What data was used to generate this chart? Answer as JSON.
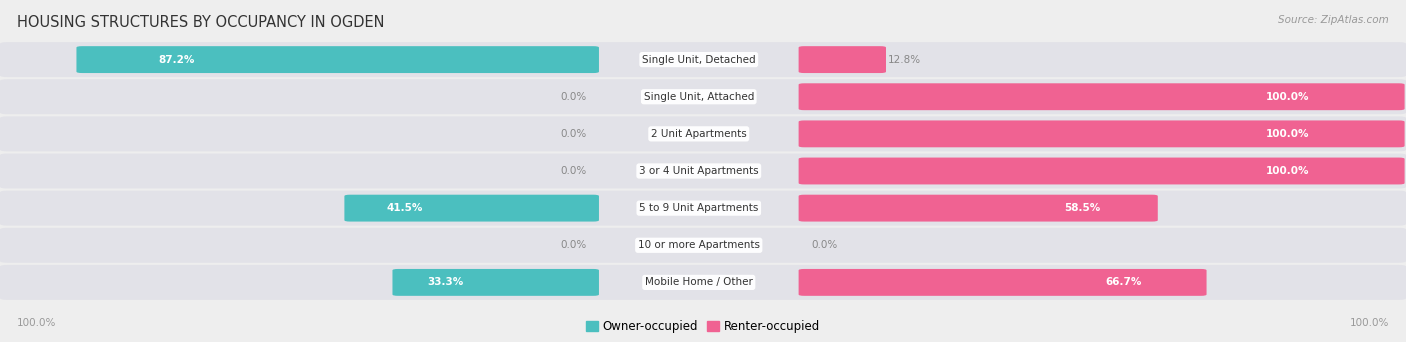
{
  "title": "HOUSING STRUCTURES BY OCCUPANCY IN OGDEN",
  "source": "Source: ZipAtlas.com",
  "categories": [
    "Single Unit, Detached",
    "Single Unit, Attached",
    "2 Unit Apartments",
    "3 or 4 Unit Apartments",
    "5 to 9 Unit Apartments",
    "10 or more Apartments",
    "Mobile Home / Other"
  ],
  "owner_pct": [
    87.2,
    0.0,
    0.0,
    0.0,
    41.5,
    0.0,
    33.3
  ],
  "renter_pct": [
    12.8,
    100.0,
    100.0,
    100.0,
    58.5,
    0.0,
    66.7
  ],
  "owner_color": "#4BBFBF",
  "renter_color": "#F06292",
  "bg_color": "#EEEEEE",
  "bar_bg_color": "#E2E2E8",
  "title_color": "#333333",
  "source_color": "#999999",
  "pct_color_inside": "#FFFFFF",
  "pct_color_outside": "#888888",
  "label_fontsize": 7.5,
  "cat_fontsize": 7.5,
  "title_fontsize": 10.5,
  "source_fontsize": 7.5,
  "legend_fontsize": 8.5,
  "axis_fontsize": 7.5
}
